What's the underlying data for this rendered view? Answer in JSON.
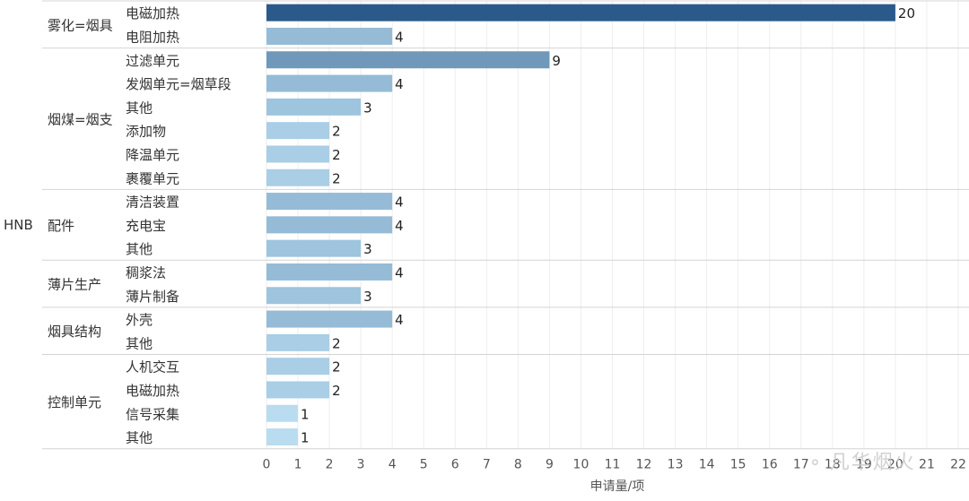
{
  "chart_data": {
    "type": "bar",
    "orientation": "horizontal",
    "top_group": "HNB",
    "xlabel": "申请量/项",
    "xlim": [
      0,
      22
    ],
    "xticks": [
      0,
      1,
      2,
      3,
      4,
      5,
      6,
      7,
      8,
      9,
      10,
      11,
      12,
      13,
      14,
      15,
      16,
      17,
      18,
      19,
      20,
      21,
      22
    ],
    "grid": "vertical",
    "groups": [
      {
        "name": "雾化=烟具",
        "items": [
          {
            "label": "电磁加热",
            "value": 20
          },
          {
            "label": "电阻加热",
            "value": 4
          }
        ]
      },
      {
        "name": "烟煤=烟支",
        "items": [
          {
            "label": "过滤单元",
            "value": 9
          },
          {
            "label": "发烟单元=烟草段",
            "value": 4
          },
          {
            "label": "其他",
            "value": 3
          },
          {
            "label": "添加物",
            "value": 2
          },
          {
            "label": "降温单元",
            "value": 2
          },
          {
            "label": "裹覆单元",
            "value": 2
          }
        ]
      },
      {
        "name": "配件",
        "items": [
          {
            "label": "清洁装置",
            "value": 4
          },
          {
            "label": "充电宝",
            "value": 4
          },
          {
            "label": "其他",
            "value": 3
          }
        ]
      },
      {
        "name": "薄片生产",
        "items": [
          {
            "label": "稠浆法",
            "value": 4
          },
          {
            "label": "薄片制备",
            "value": 3
          }
        ]
      },
      {
        "name": "烟具结构",
        "items": [
          {
            "label": "外壳",
            "value": 4
          },
          {
            "label": "其他",
            "value": 2
          }
        ]
      },
      {
        "name": "控制单元",
        "items": [
          {
            "label": "人机交互",
            "value": 2
          },
          {
            "label": "电磁加热",
            "value": 2
          },
          {
            "label": "信号采集",
            "value": 1
          },
          {
            "label": "其他",
            "value": 1
          }
        ]
      }
    ],
    "colors": {
      "min": "#b9dcf0",
      "max": "#2b5a8a"
    }
  },
  "watermark": {
    "icon": "wechat-icon",
    "text": "凡华烟火"
  }
}
